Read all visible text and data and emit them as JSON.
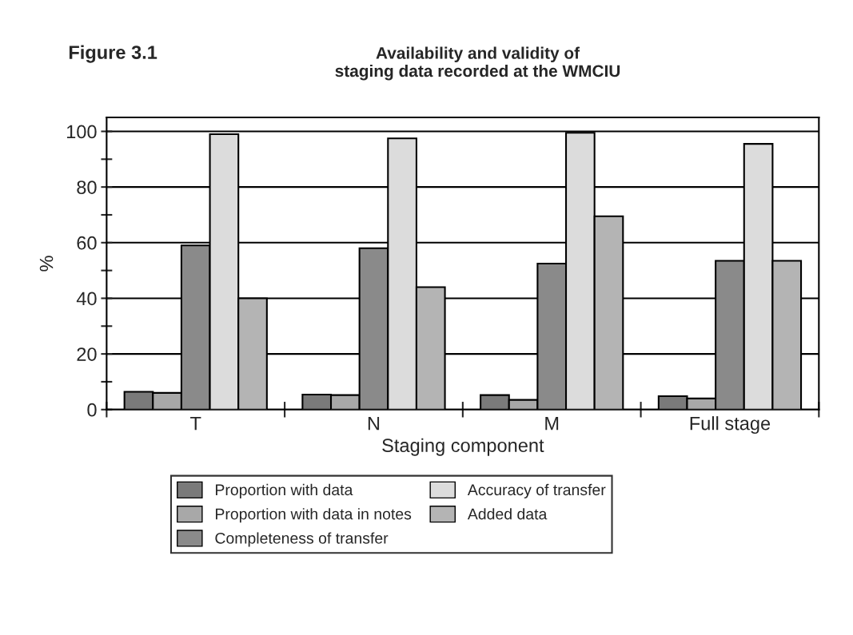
{
  "chart_data": {
    "type": "bar",
    "title": "Figure 3.1",
    "subtitle": "Availability and validity of\nstaging data recorded at the WMCIU",
    "xlabel": "Staging component",
    "ylabel": "%",
    "categories": [
      "T",
      "N",
      "M",
      "Full stage"
    ],
    "series": [
      {
        "name": "Proportion with data",
        "color": "#7a7a7a",
        "values": [
          6.4,
          5.4,
          5.2,
          4.8
        ]
      },
      {
        "name": "Proportion with data in notes",
        "color": "#a8a8a8",
        "values": [
          6.0,
          5.2,
          3.5,
          4.0
        ]
      },
      {
        "name": "Completeness of transfer",
        "color": "#8a8a8a",
        "values": [
          59,
          58,
          52.5,
          53.5
        ]
      },
      {
        "name": "Accuracy of transfer",
        "color": "#dcdcdc",
        "values": [
          99,
          97.5,
          99.5,
          95.5
        ]
      },
      {
        "name": "Added data",
        "color": "#b4b4b4",
        "values": [
          40,
          44,
          69.5,
          53.5
        ]
      }
    ],
    "ylim": [
      0,
      105
    ],
    "yticks": [
      0,
      {
        "value": 10,
        "label": null
      },
      20,
      {
        "value": 30,
        "label": null
      },
      40,
      {
        "value": 50,
        "label": null
      },
      60,
      {
        "value": 70,
        "label": null
      },
      80,
      {
        "value": 90,
        "label": null
      },
      100
    ],
    "grid": "y",
    "legend": "bottom"
  }
}
